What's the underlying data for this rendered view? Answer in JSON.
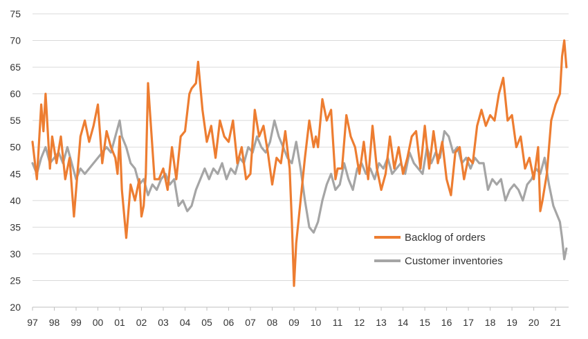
{
  "chart_data": {
    "type": "line",
    "title": "",
    "xlabel": "",
    "ylabel": "",
    "ylim": [
      20,
      75
    ],
    "yticks": [
      20,
      25,
      30,
      35,
      40,
      45,
      50,
      55,
      60,
      65,
      70,
      75
    ],
    "xticks": [
      "97",
      "98",
      "99",
      "00",
      "01",
      "02",
      "03",
      "04",
      "05",
      "06",
      "07",
      "08",
      "09",
      "10",
      "11",
      "12",
      "13",
      "14",
      "15",
      "16",
      "17",
      "18",
      "19",
      "20",
      "21"
    ],
    "xlim": [
      1997.0,
      2021.6
    ],
    "grid": true,
    "legend": "lower-right",
    "series": [
      {
        "name": "Backlog of orders",
        "color": "#ED7D31",
        "x": [
          1997.0,
          1997.2,
          1997.4,
          1997.5,
          1997.6,
          1997.8,
          1997.9,
          1998.1,
          1998.3,
          1998.5,
          1998.7,
          1998.9,
          1999.0,
          1999.2,
          1999.4,
          1999.6,
          1999.8,
          2000.0,
          2000.2,
          2000.4,
          2000.6,
          2000.8,
          2000.9,
          2001.0,
          2001.1,
          2001.3,
          2001.5,
          2001.7,
          2001.9,
          2002.0,
          2002.1,
          2002.2,
          2002.3,
          2002.4,
          2002.6,
          2002.8,
          2003.0,
          2003.2,
          2003.4,
          2003.6,
          2003.8,
          2004.0,
          2004.2,
          2004.3,
          2004.5,
          2004.6,
          2004.8,
          2005.0,
          2005.2,
          2005.4,
          2005.6,
          2005.8,
          2006.0,
          2006.2,
          2006.4,
          2006.6,
          2006.8,
          2007.0,
          2007.2,
          2007.4,
          2007.6,
          2007.8,
          2008.0,
          2008.2,
          2008.4,
          2008.6,
          2008.8,
          2008.9,
          2009.0,
          2009.1,
          2009.3,
          2009.5,
          2009.7,
          2009.9,
          2010.0,
          2010.1,
          2010.3,
          2010.5,
          2010.7,
          2010.9,
          2011.0,
          2011.2,
          2011.4,
          2011.6,
          2011.8,
          2012.0,
          2012.2,
          2012.4,
          2012.6,
          2012.8,
          2013.0,
          2013.2,
          2013.4,
          2013.6,
          2013.8,
          2014.0,
          2014.2,
          2014.4,
          2014.6,
          2014.8,
          2015.0,
          2015.2,
          2015.4,
          2015.6,
          2015.8,
          2016.0,
          2016.2,
          2016.4,
          2016.6,
          2016.8,
          2017.0,
          2017.2,
          2017.4,
          2017.6,
          2017.8,
          2018.0,
          2018.2,
          2018.4,
          2018.6,
          2018.8,
          2019.0,
          2019.2,
          2019.4,
          2019.6,
          2019.8,
          2020.0,
          2020.2,
          2020.3,
          2020.4,
          2020.6,
          2020.8,
          2021.0,
          2021.2,
          2021.3,
          2021.4,
          2021.5
        ],
        "values": [
          51,
          44,
          58,
          53,
          60,
          46,
          52,
          47,
          52,
          44,
          48,
          37,
          42,
          52,
          55,
          51,
          54,
          58,
          47,
          53,
          50,
          48,
          45,
          52,
          42,
          33,
          43,
          40,
          44,
          37,
          39,
          45,
          62,
          56,
          44,
          44,
          46,
          42,
          50,
          44,
          52,
          53,
          60,
          61,
          62,
          66,
          57,
          51,
          54,
          48,
          55,
          52,
          51,
          55,
          47,
          50,
          44,
          45,
          57,
          52,
          54,
          49,
          43,
          48,
          47,
          53,
          46,
          36,
          24,
          32,
          40,
          48,
          55,
          50,
          52,
          50,
          59,
          55,
          57,
          44,
          46,
          46,
          56,
          52,
          50,
          45,
          51,
          44,
          54,
          46,
          42,
          45,
          52,
          46,
          50,
          45,
          48,
          52,
          53,
          46,
          54,
          46,
          53,
          47,
          51,
          44,
          41,
          49,
          50,
          44,
          48,
          47,
          54,
          57,
          54,
          56,
          55,
          60,
          63,
          55,
          56,
          50,
          52,
          46,
          48,
          44,
          50,
          38,
          40,
          45,
          55,
          58,
          60,
          67,
          70,
          65
        ]
      },
      {
        "name": "Customer inventories",
        "color": "#A5A5A5",
        "x": [
          1997.0,
          1997.2,
          1997.4,
          1997.6,
          1997.8,
          1998.0,
          1998.2,
          1998.4,
          1998.6,
          1998.8,
          1999.0,
          1999.2,
          1999.4,
          1999.6,
          1999.8,
          2000.0,
          2000.2,
          2000.4,
          2000.6,
          2000.8,
          2001.0,
          2001.1,
          2001.3,
          2001.5,
          2001.7,
          2001.9,
          2002.1,
          2002.3,
          2002.5,
          2002.7,
          2002.9,
          2003.1,
          2003.3,
          2003.5,
          2003.7,
          2003.9,
          2004.1,
          2004.3,
          2004.5,
          2004.7,
          2004.9,
          2005.1,
          2005.3,
          2005.5,
          2005.7,
          2005.9,
          2006.1,
          2006.3,
          2006.5,
          2006.7,
          2006.9,
          2007.1,
          2007.3,
          2007.5,
          2007.7,
          2007.9,
          2008.1,
          2008.3,
          2008.5,
          2008.7,
          2008.9,
          2009.1,
          2009.3,
          2009.5,
          2009.7,
          2009.9,
          2010.1,
          2010.3,
          2010.5,
          2010.7,
          2010.9,
          2011.1,
          2011.3,
          2011.5,
          2011.7,
          2011.9,
          2012.1,
          2012.3,
          2012.5,
          2012.7,
          2012.9,
          2013.1,
          2013.3,
          2013.5,
          2013.7,
          2013.9,
          2014.1,
          2014.3,
          2014.5,
          2014.7,
          2014.9,
          2015.1,
          2015.3,
          2015.5,
          2015.7,
          2015.9,
          2016.1,
          2016.3,
          2016.5,
          2016.7,
          2016.9,
          2017.1,
          2017.3,
          2017.5,
          2017.7,
          2017.9,
          2018.1,
          2018.3,
          2018.5,
          2018.7,
          2018.9,
          2019.1,
          2019.3,
          2019.5,
          2019.7,
          2019.9,
          2020.1,
          2020.3,
          2020.5,
          2020.7,
          2020.9,
          2021.1,
          2021.2,
          2021.3,
          2021.4,
          2021.5
        ],
        "values": [
          47,
          45,
          48,
          50,
          47,
          48,
          49,
          47,
          50,
          47,
          44,
          46,
          45,
          46,
          47,
          48,
          49,
          50,
          49,
          52,
          55,
          52,
          50,
          47,
          46,
          43,
          44,
          41,
          43,
          42,
          44,
          45,
          43,
          44,
          39,
          40,
          38,
          39,
          42,
          44,
          46,
          44,
          46,
          45,
          47,
          44,
          46,
          45,
          48,
          47,
          50,
          49,
          52,
          50,
          49,
          51,
          55,
          52,
          50,
          48,
          47,
          51,
          46,
          40,
          35,
          34,
          36,
          40,
          43,
          45,
          42,
          43,
          47,
          44,
          42,
          46,
          47,
          45,
          46,
          44,
          47,
          46,
          48,
          45,
          46,
          47,
          45,
          49,
          47,
          46,
          45,
          50,
          47,
          49,
          48,
          53,
          52,
          49,
          50,
          47,
          48,
          46,
          48,
          47,
          47,
          42,
          44,
          43,
          44,
          40,
          42,
          43,
          42,
          40,
          43,
          44,
          46,
          45,
          48,
          43,
          39,
          37,
          36,
          33,
          29,
          31
        ]
      }
    ]
  }
}
